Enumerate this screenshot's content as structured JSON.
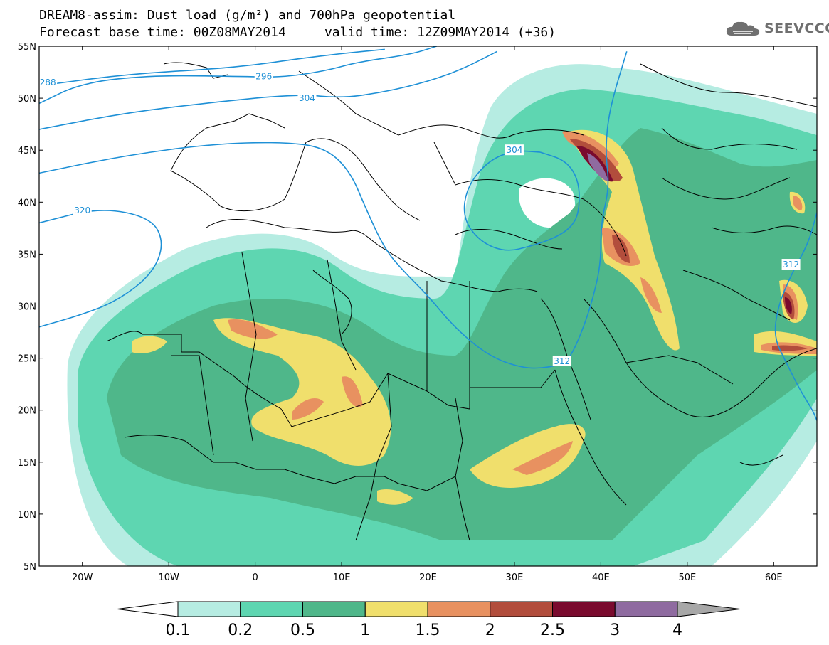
{
  "header": {
    "title_line1": "DREAM8-assim: Dust load (g/m²) and 700hPa geopotential",
    "title_line2": "Forecast base time: 00Z08MAY2014     valid time: 12Z09MAY2014 (+36)",
    "logo_text": "SEEVCCC"
  },
  "map": {
    "lon_range": [
      -25,
      65
    ],
    "lat_range": [
      5,
      55
    ],
    "lat_labels": [
      {
        "lat": 55,
        "label": "55N"
      },
      {
        "lat": 50,
        "label": "50N"
      },
      {
        "lat": 45,
        "label": "45N"
      },
      {
        "lat": 40,
        "label": "40N"
      },
      {
        "lat": 35,
        "label": "35N"
      },
      {
        "lat": 30,
        "label": "30N"
      },
      {
        "lat": 25,
        "label": "25N"
      },
      {
        "lat": 20,
        "label": "20N"
      },
      {
        "lat": 15,
        "label": "15N"
      },
      {
        "lat": 10,
        "label": "10N"
      },
      {
        "lat": 5,
        "label": "5N"
      }
    ],
    "lon_labels": [
      {
        "lon": -20,
        "label": "20W"
      },
      {
        "lon": -10,
        "label": "10W"
      },
      {
        "lon": 0,
        "label": "0"
      },
      {
        "lon": 10,
        "label": "10E"
      },
      {
        "lon": 20,
        "label": "20E"
      },
      {
        "lon": 30,
        "label": "30E"
      },
      {
        "lon": 40,
        "label": "40E"
      },
      {
        "lon": 50,
        "label": "50E"
      },
      {
        "lon": 60,
        "label": "60E"
      }
    ],
    "geopotential_contours": [
      {
        "value": 288,
        "label": "288",
        "points": [
          [
            -25,
            51.2
          ],
          [
            -15,
            52.3
          ],
          [
            -5,
            52.8
          ],
          [
            0,
            53.2
          ],
          [
            5,
            53.8
          ],
          [
            10,
            54.3
          ],
          [
            15,
            54.7
          ]
        ],
        "label_at": [
          -24,
          51.5
        ]
      },
      {
        "value": 296,
        "label": "296",
        "points": [
          [
            -25,
            49.5
          ],
          [
            -20,
            51.5
          ],
          [
            -12,
            52.2
          ],
          [
            -2,
            52.1
          ],
          [
            3,
            52.0
          ],
          [
            8,
            52.6
          ],
          [
            12,
            53.5
          ],
          [
            18,
            54.2
          ],
          [
            21,
            55
          ]
        ],
        "label_at": [
          1,
          52.1
        ]
      },
      {
        "value": 304,
        "label": "304",
        "points": [
          [
            -25,
            47.0
          ],
          [
            -15,
            48.6
          ],
          [
            -5,
            49.6
          ],
          [
            5,
            50.4
          ],
          [
            10,
            50.0
          ],
          [
            15,
            50.6
          ],
          [
            20,
            51.6
          ],
          [
            24,
            52.8
          ],
          [
            28,
            54.5
          ]
        ],
        "label_at": [
          6,
          50.0
        ]
      },
      {
        "value": 312,
        "label": "312",
        "points": [
          [
            -25,
            42.8
          ],
          [
            -15,
            44.5
          ],
          [
            -5,
            45.6
          ],
          [
            3,
            45.8
          ],
          [
            8,
            45.3
          ],
          [
            11,
            43.0
          ],
          [
            13,
            39.0
          ],
          [
            15,
            35.5
          ],
          [
            17,
            33.5
          ],
          [
            20,
            31.0
          ],
          [
            23,
            28.0
          ],
          [
            27,
            25.2
          ],
          [
            31,
            24.0
          ],
          [
            34,
            24.1
          ],
          [
            36,
            24.6
          ],
          [
            37,
            26.0
          ],
          [
            38,
            28.0
          ],
          [
            39,
            30.5
          ],
          [
            40,
            34.0
          ],
          [
            40,
            38.0
          ],
          [
            41,
            41.5
          ],
          [
            40.5,
            45.0
          ],
          [
            41,
            49.0
          ],
          [
            43,
            54.5
          ]
        ],
        "label_at": [
          35.5,
          24.7
        ]
      },
      {
        "value": 304,
        "label": "304",
        "points": [
          [
            33,
            44.8
          ],
          [
            36,
            44.0
          ],
          [
            37.5,
            42.0
          ],
          [
            37.5,
            39.0
          ],
          [
            36.5,
            37.5
          ],
          [
            34.5,
            36.5
          ],
          [
            32,
            35.8
          ],
          [
            29,
            35.2
          ],
          [
            26,
            36.2
          ],
          [
            24,
            38.5
          ],
          [
            24.5,
            41.5
          ],
          [
            27,
            44.0
          ],
          [
            30,
            45.0
          ],
          [
            33,
            44.8
          ]
        ],
        "label_at": [
          30,
          45.0
        ]
      },
      {
        "value": 320,
        "label": "320",
        "points": [
          [
            -25,
            38.0
          ],
          [
            -18,
            39.5
          ],
          [
            -12,
            38.5
          ],
          [
            -10.5,
            36.0
          ],
          [
            -12,
            33.0
          ],
          [
            -16,
            30.5
          ],
          [
            -20,
            29.2
          ],
          [
            -25,
            28.0
          ]
        ],
        "label_at": [
          -20,
          39.2
        ]
      },
      {
        "value": 312,
        "label": "312",
        "points": [
          [
            65,
            39.0
          ],
          [
            64,
            36.0
          ],
          [
            62,
            33.0
          ],
          [
            60.5,
            30.0
          ],
          [
            60,
            27.0
          ],
          [
            61.5,
            24.5
          ],
          [
            63,
            22.0
          ],
          [
            64.5,
            20.0
          ],
          [
            65,
            19.0
          ]
        ],
        "label_at": [
          62,
          34.0
        ]
      }
    ]
  },
  "colorbar": {
    "levels": [
      "0.1",
      "0.2",
      "0.5",
      "1",
      "1.5",
      "2",
      "2.5",
      "3",
      "4"
    ],
    "colors": [
      "#ffffff",
      "#b6ece2",
      "#5ed6b1",
      "#4fb78a",
      "#f0df6c",
      "#e89160",
      "#b24d3c",
      "#7a0a2e",
      "#8f6ba0",
      "#a8a8a8"
    ]
  },
  "colors": {
    "contour": "#1e90d6",
    "border": "#000000"
  }
}
